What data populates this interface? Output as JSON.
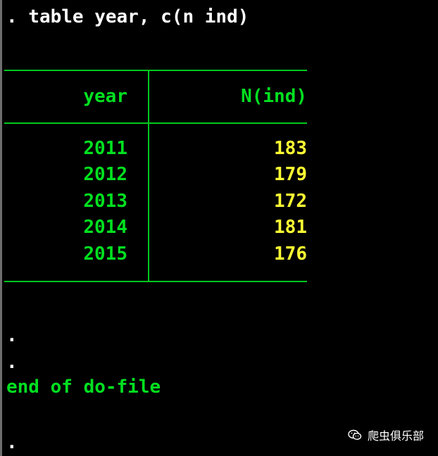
{
  "command": ". table year, c(n ind)",
  "table": {
    "header": {
      "year": "year",
      "n": "N(ind)"
    },
    "rows": [
      {
        "year": "2011",
        "n": "183"
      },
      {
        "year": "2012",
        "n": "179"
      },
      {
        "year": "2013",
        "n": "172"
      },
      {
        "year": "2014",
        "n": "181"
      },
      {
        "year": "2015",
        "n": "176"
      }
    ]
  },
  "trailing": {
    "dot1": ".",
    "dot2": ".",
    "end_text": "end of do-file",
    "dot3": "."
  },
  "watermark": {
    "text": "爬虫俱乐部",
    "icon": "wechat-icon"
  },
  "colors": {
    "background": "#000000",
    "command": "#ffffff",
    "green": "#00e020",
    "yellow": "#ffff33"
  }
}
